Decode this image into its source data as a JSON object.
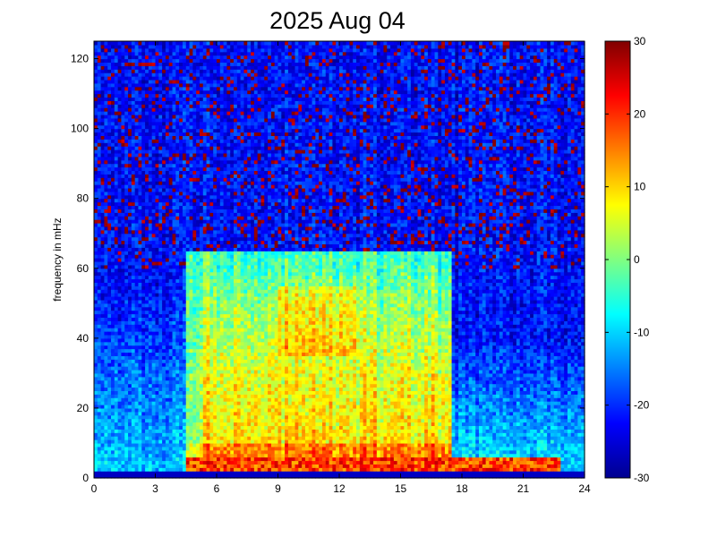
{
  "chart_data": {
    "type": "heatmap",
    "title": "2025 Aug 04",
    "xlabel": "",
    "ylabel": "frequency in mHz",
    "xlim": [
      0,
      24
    ],
    "ylim": [
      0,
      125
    ],
    "x_ticks": [
      "0",
      "3",
      "6",
      "9",
      "12",
      "15",
      "18",
      "21",
      "24"
    ],
    "y_ticks": [
      "0",
      "20",
      "40",
      "60",
      "80",
      "100",
      "120"
    ],
    "colorbar": {
      "colormap": "jet",
      "clim": [
        -30,
        30
      ],
      "ticks": [
        "30",
        "20",
        "10",
        "0",
        "-10",
        "-20",
        "-30"
      ]
    },
    "grid": false,
    "grid_resolution": {
      "time_bins": 144,
      "freq_bins": 125
    },
    "features": {
      "low_freq_band_mHz": [
        0,
        2
      ],
      "daytime_enhancement_hours": [
        4.5,
        17.5
      ],
      "daytime_enhancement_max_freq_mHz": 65,
      "peak_activity_hours": [
        9,
        13
      ],
      "peak_activity_freq_mHz": [
        35,
        55
      ],
      "night_background_level": -22,
      "daytime_level_range": [
        -5,
        10
      ]
    }
  }
}
